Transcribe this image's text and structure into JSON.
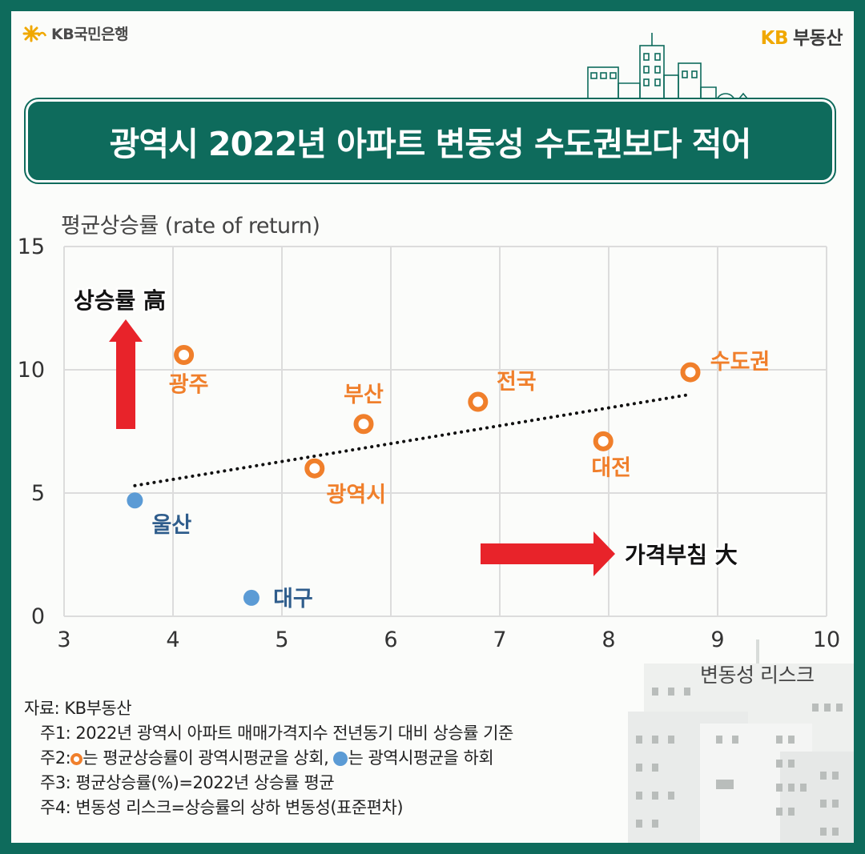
{
  "header": {
    "left_brand": "KB국민은행",
    "right_brand_kb": "KB",
    "right_brand_name": "부동산",
    "brand_color": "#f0a800"
  },
  "title": "광역시 2022년 아파트 변동성 수도권보다 적어",
  "colors": {
    "frame": "#0e6b5c",
    "above_avg": "#f07f2b",
    "below_avg": "#5b9bd5",
    "arrow": "#e8232a"
  },
  "chart_data": {
    "type": "scatter",
    "ylabel": "평균상승률 (rate of return)",
    "xlabel": "변동성 리스크",
    "xlim": [
      3,
      10
    ],
    "ylim": [
      0,
      15
    ],
    "x_ticks": [
      "3",
      "4",
      "5",
      "6",
      "7",
      "8",
      "9",
      "10"
    ],
    "y_ticks": [
      "0",
      "5",
      "10",
      "15"
    ],
    "grid": true,
    "points": [
      {
        "label": "광주",
        "x": 4.1,
        "y": 10.6,
        "group": "above"
      },
      {
        "label": "부산",
        "x": 5.75,
        "y": 7.8,
        "group": "above"
      },
      {
        "label": "전국",
        "x": 6.8,
        "y": 8.7,
        "group": "above"
      },
      {
        "label": "수도권",
        "x": 8.75,
        "y": 9.9,
        "group": "above"
      },
      {
        "label": "대전",
        "x": 7.95,
        "y": 7.1,
        "group": "above"
      },
      {
        "label": "광역시",
        "x": 5.3,
        "y": 6.0,
        "group": "above"
      },
      {
        "label": "울산",
        "x": 3.65,
        "y": 4.7,
        "group": "below"
      },
      {
        "label": "대구",
        "x": 4.72,
        "y": 0.75,
        "group": "below"
      }
    ],
    "trendline": {
      "x": [
        3.65,
        8.75
      ],
      "y": [
        5.3,
        9.0
      ]
    },
    "annotations": {
      "up_arrow_label": "상승률 高",
      "right_arrow_label": "가격부침 大"
    }
  },
  "notes": {
    "source": "자료: KB부동산",
    "n1": "주1: 2022년 광역시 아파트 매매가격지수 전년동기 대비 상승률 기준",
    "n2_prefix": "주2:",
    "n2_mid": "는 평균상승률이 광역시평균을 상회,",
    "n2_end": "는 광역시평균을 하회",
    "n3": "주3: 평균상승률(%)=2022년 상승률 평균",
    "n4": "주4: 변동성 리스크=상승률의 상하 변동성(표준편차)"
  }
}
